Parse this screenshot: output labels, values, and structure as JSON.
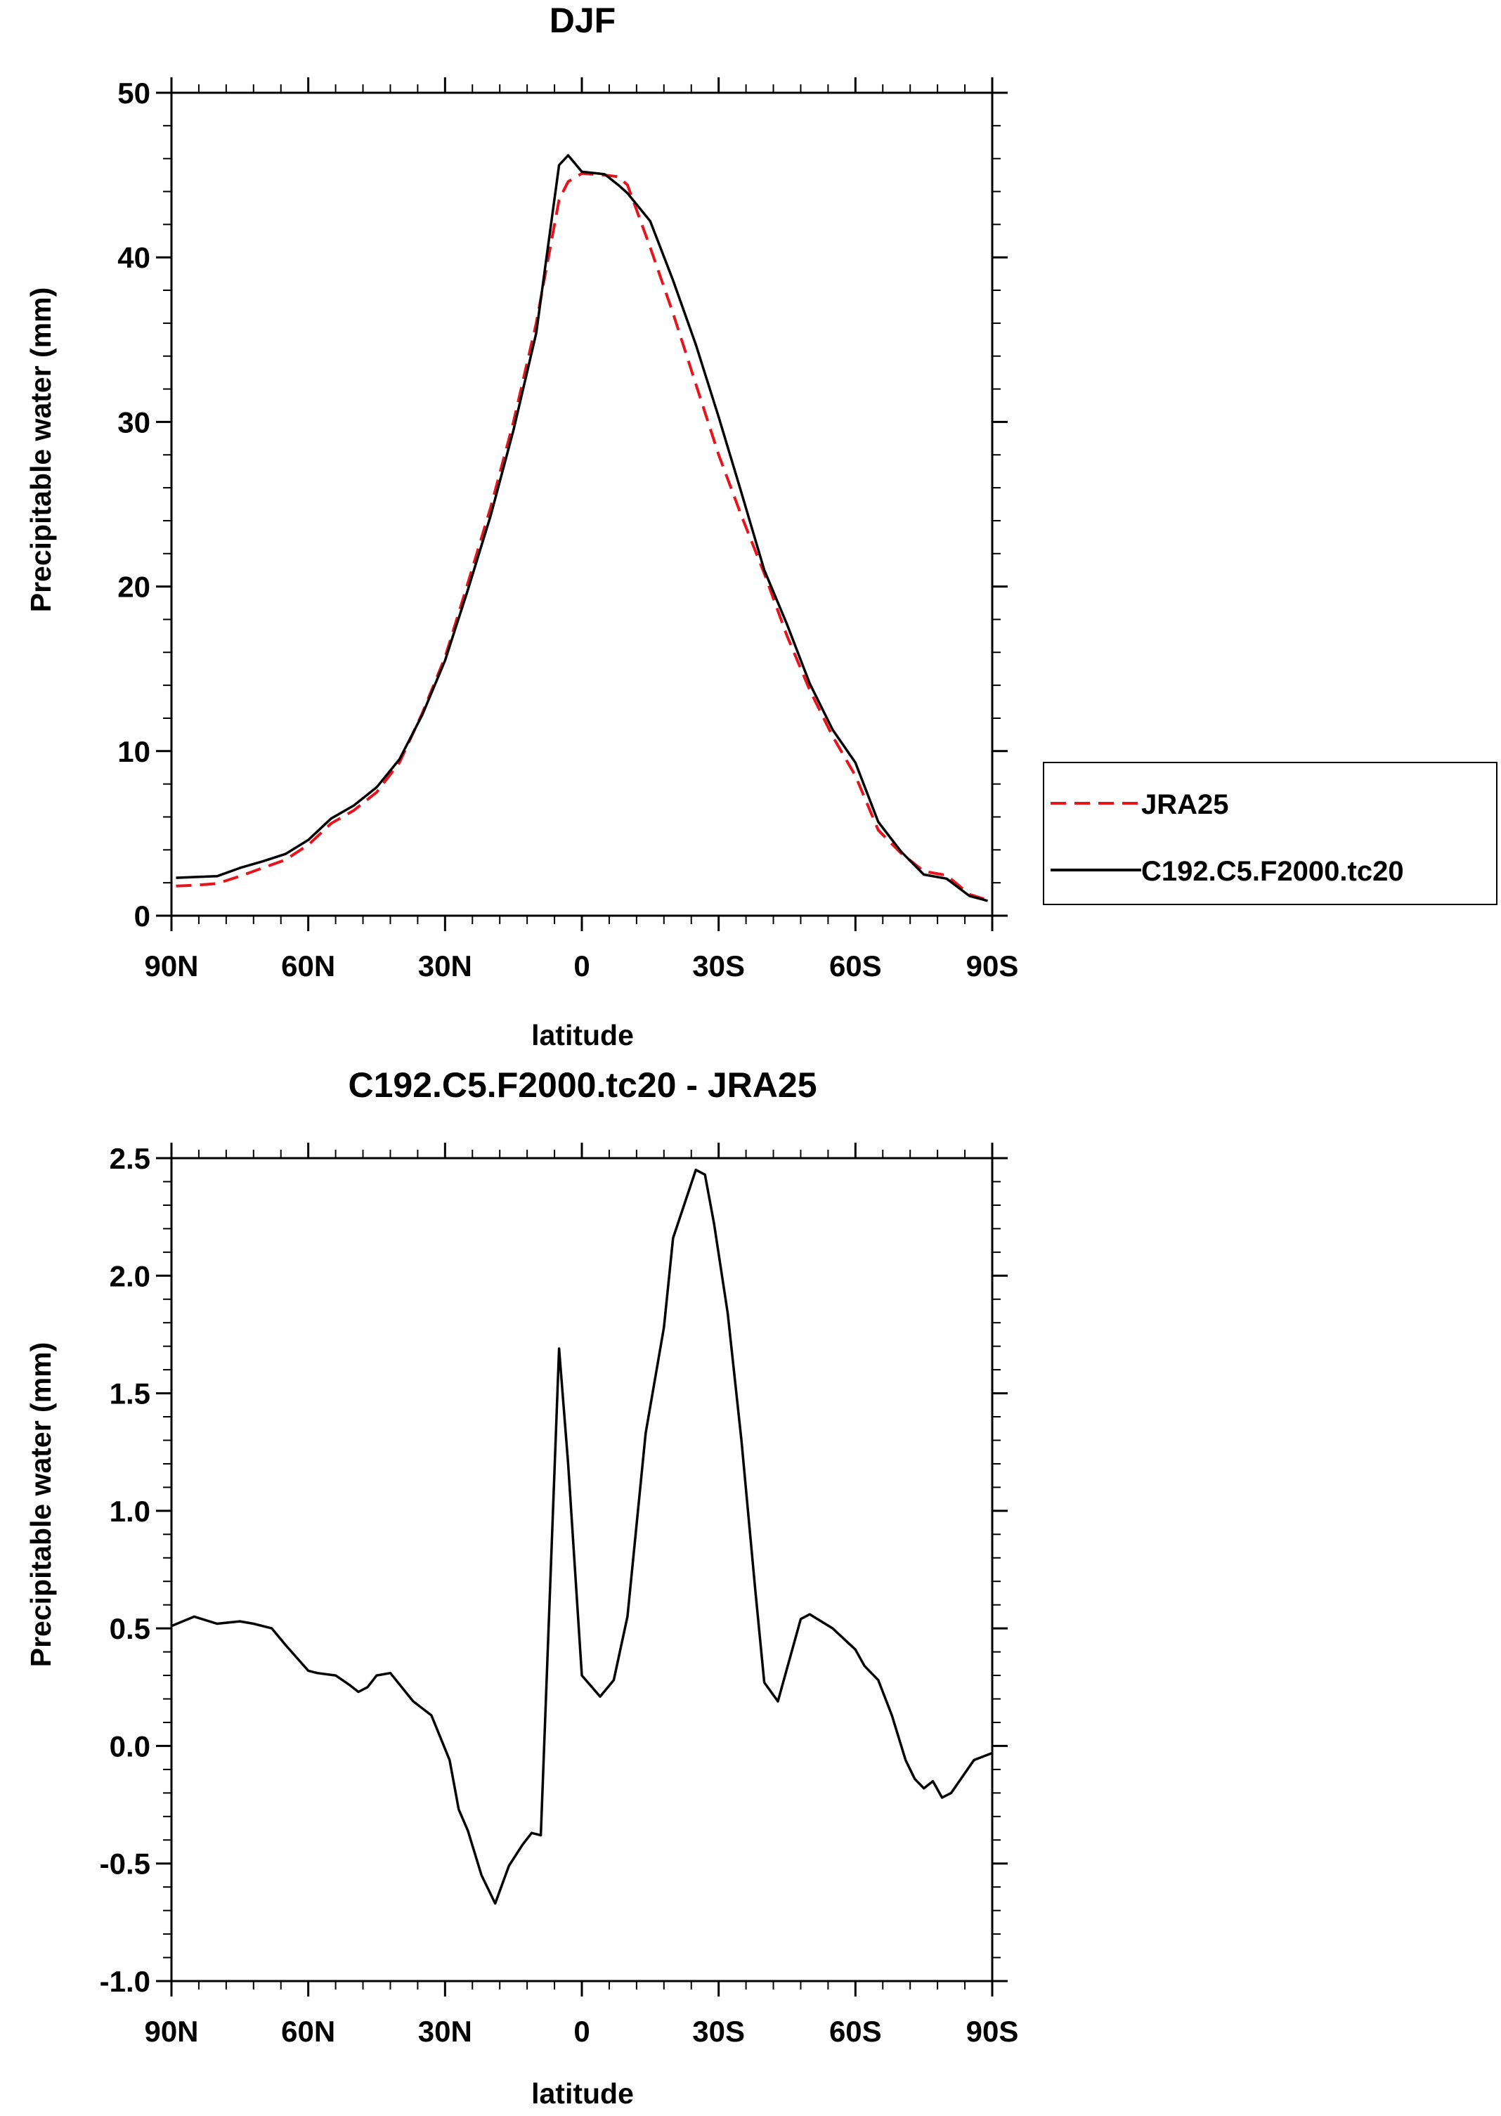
{
  "colors": {
    "model_line": "#000000",
    "obs_line": "#e8141c",
    "axis": "#000000",
    "background": "#ffffff"
  },
  "chart_data": [
    {
      "type": "line",
      "title": "DJF",
      "xlabel": "latitude",
      "ylabel": "Precipitable water (mm)",
      "xlim": [
        90,
        -90
      ],
      "ylim": [
        0,
        50
      ],
      "x_ticks": [
        90,
        60,
        30,
        0,
        -30,
        -60,
        -90
      ],
      "x_tick_labels": [
        "90N",
        "60N",
        "30N",
        "0",
        "30S",
        "60S",
        "90S"
      ],
      "y_ticks": [
        0,
        10,
        20,
        30,
        40,
        50
      ],
      "y_tick_labels": [
        "0",
        "10",
        "20",
        "30",
        "40",
        "50"
      ],
      "legend_position": "right-outside",
      "series": [
        {
          "name": "JRA25",
          "style": "dashed",
          "color": "#e8141c",
          "x": [
            89,
            85,
            80,
            75,
            70,
            65,
            60,
            55,
            50,
            45,
            40,
            35,
            30,
            25,
            20,
            15,
            10,
            5,
            3,
            0,
            -5,
            -8,
            -10,
            -15,
            -20,
            -25,
            -30,
            -35,
            -40,
            -45,
            -50,
            -55,
            -60,
            -65,
            -70,
            -75,
            -80,
            -85,
            -89
          ],
          "y": [
            1.8,
            1.85,
            1.95,
            2.4,
            2.9,
            3.4,
            4.3,
            5.6,
            6.4,
            7.5,
            9.3,
            12.3,
            15.7,
            20.2,
            24.8,
            30.0,
            36.0,
            43.5,
            44.6,
            45.1,
            45.0,
            44.9,
            44.4,
            40.6,
            36.6,
            32.3,
            28.0,
            24.3,
            20.8,
            17.0,
            13.7,
            10.9,
            8.5,
            5.2,
            3.8,
            2.7,
            2.45,
            1.3,
            0.95
          ]
        },
        {
          "name": "C192.C5.F2000.tc20",
          "style": "solid",
          "color": "#000000",
          "x": [
            89,
            85,
            80,
            75,
            70,
            65,
            60,
            55,
            50,
            45,
            40,
            35,
            30,
            25,
            20,
            15,
            10,
            5,
            3,
            0,
            -5,
            -8,
            -10,
            -15,
            -20,
            -25,
            -30,
            -35,
            -40,
            -45,
            -50,
            -55,
            -60,
            -65,
            -70,
            -75,
            -80,
            -85,
            -89
          ],
          "y": [
            2.3,
            2.35,
            2.4,
            2.9,
            3.3,
            3.75,
            4.6,
            5.9,
            6.7,
            7.8,
            9.5,
            12.2,
            15.5,
            19.8,
            24.3,
            29.5,
            35.4,
            45.6,
            46.2,
            45.2,
            45.05,
            44.4,
            43.9,
            42.2,
            38.6,
            34.7,
            30.3,
            25.7,
            21.0,
            17.7,
            14.1,
            11.3,
            9.3,
            5.7,
            3.9,
            2.5,
            2.25,
            1.2,
            0.9
          ]
        }
      ]
    },
    {
      "type": "line",
      "title": "C192.C5.F2000.tc20 - JRA25",
      "xlabel": "latitude",
      "ylabel": "Precipitable water (mm)",
      "xlim": [
        90,
        -90
      ],
      "ylim": [
        -1.0,
        2.5
      ],
      "x_ticks": [
        90,
        60,
        30,
        0,
        -30,
        -60,
        -90
      ],
      "x_tick_labels": [
        "90N",
        "60N",
        "30N",
        "0",
        "30S",
        "60S",
        "90S"
      ],
      "y_ticks": [
        -1.0,
        -0.5,
        0.0,
        0.5,
        1.0,
        1.5,
        2.0,
        2.5
      ],
      "y_tick_labels": [
        "-1.0",
        "-0.5",
        "0.0",
        "0.5",
        "1.0",
        "1.5",
        "2.0",
        "2.5"
      ],
      "series": [
        {
          "name": "C192.C5.F2000.tc20 - JRA25",
          "style": "solid",
          "color": "#000000",
          "x": [
            90,
            85,
            80,
            75,
            72,
            68,
            65,
            60,
            58,
            54,
            51,
            49,
            47,
            45,
            42,
            37,
            33,
            29,
            27,
            25,
            22,
            19,
            16,
            13,
            11,
            9,
            5,
            3,
            0,
            -4,
            -7,
            -10,
            -14,
            -18,
            -20,
            -25,
            -27,
            -29,
            -32,
            -35,
            -38,
            -40,
            -43,
            -48,
            -50,
            -55,
            -60,
            -62,
            -65,
            -68,
            -71,
            -73,
            -75,
            -77,
            -79,
            -81,
            -86,
            -90
          ],
          "y": [
            0.51,
            0.55,
            0.52,
            0.53,
            0.52,
            0.5,
            0.43,
            0.32,
            0.31,
            0.3,
            0.26,
            0.23,
            0.25,
            0.3,
            0.31,
            0.19,
            0.13,
            -0.06,
            -0.27,
            -0.36,
            -0.55,
            -0.67,
            -0.51,
            -0.42,
            -0.37,
            -0.38,
            1.69,
            1.2,
            0.3,
            0.21,
            0.28,
            0.55,
            1.33,
            1.78,
            2.16,
            2.45,
            2.43,
            2.22,
            1.84,
            1.3,
            0.67,
            0.27,
            0.19,
            0.54,
            0.56,
            0.5,
            0.41,
            0.34,
            0.28,
            0.13,
            -0.06,
            -0.14,
            -0.18,
            -0.15,
            -0.22,
            -0.2,
            -0.06,
            -0.03
          ]
        }
      ]
    }
  ]
}
